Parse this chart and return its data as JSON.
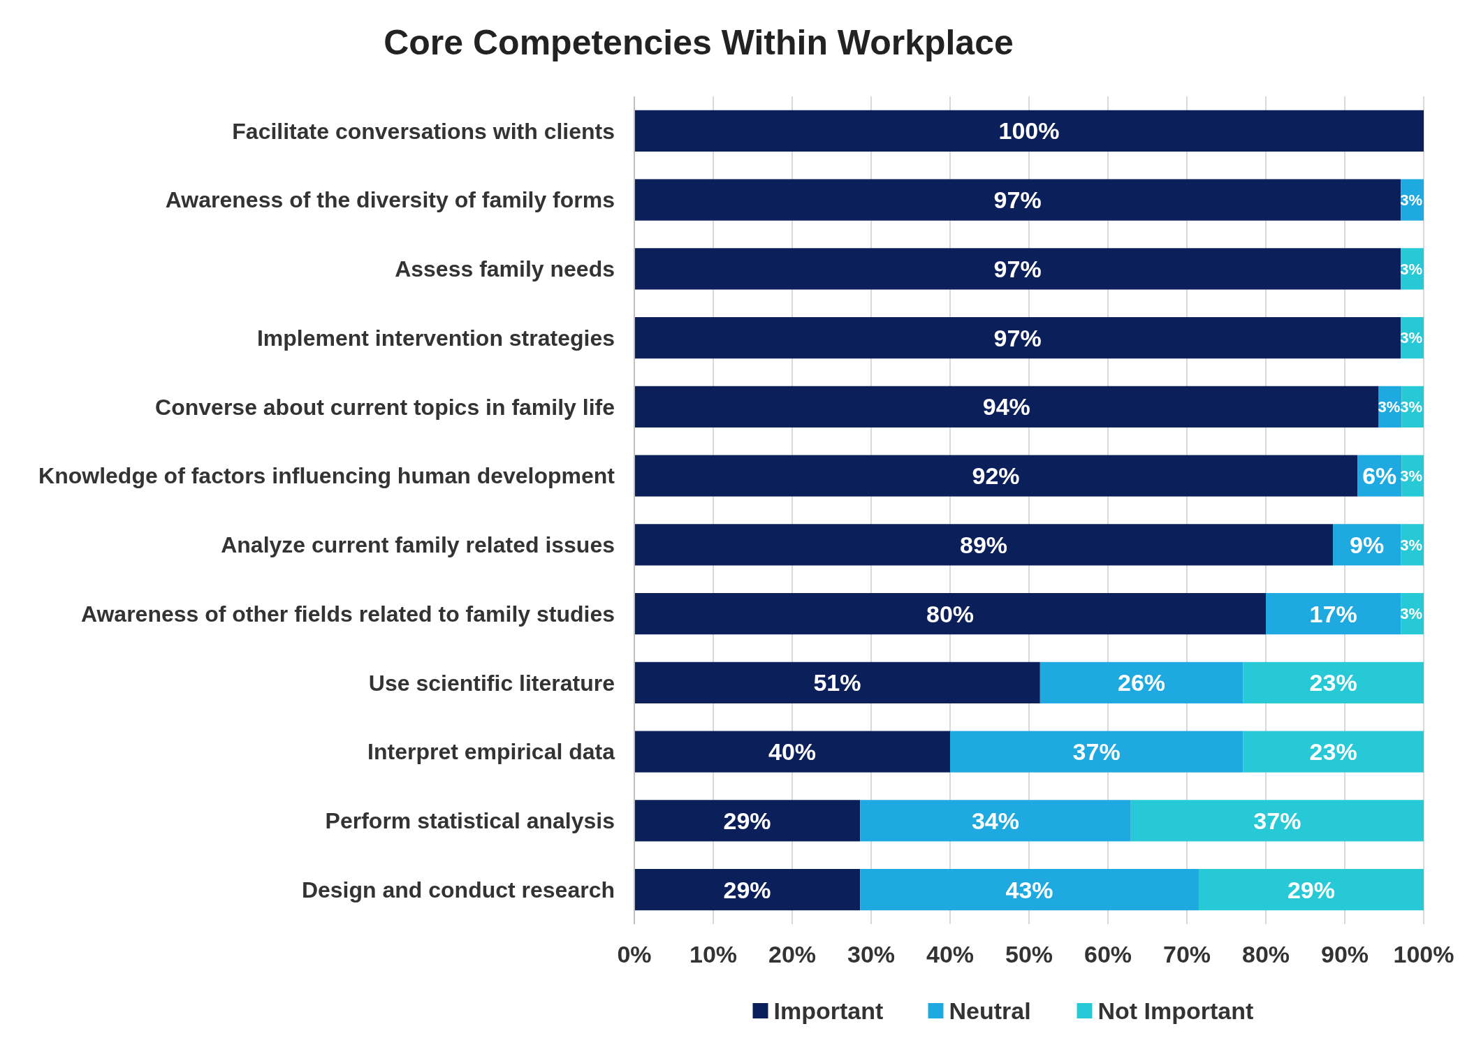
{
  "chart_data": {
    "type": "bar",
    "title": "Core Competencies Within Workplace",
    "orientation": "horizontal",
    "stacked": true,
    "categories": [
      "Facilitate conversations with clients",
      "Awareness of the diversity of family forms",
      "Assess family needs",
      "Implement intervention strategies",
      "Converse about current topics in family life",
      "Knowledge of factors influencing human development",
      "Analyze current family related issues",
      "Awareness of other fields related to family studies",
      "Use scientific literature",
      "Interpret empirical data",
      "Perform statistical analysis",
      "Design and conduct research"
    ],
    "series": [
      {
        "name": "Important",
        "color": "#0b1f5b",
        "values": [
          100,
          97.1,
          97.1,
          97.1,
          94.3,
          91.6,
          88.5,
          80.0,
          51.4,
          40.0,
          28.6,
          28.6
        ],
        "value_labels": [
          "100%",
          "97%",
          "97%",
          "97%",
          "94%",
          "92%",
          "89%",
          "80%",
          "51%",
          "40%",
          "29%",
          "29%"
        ]
      },
      {
        "name": "Neutral",
        "color": "#1ea9e1",
        "values": [
          null,
          2.9,
          null,
          null,
          2.9,
          5.6,
          8.6,
          17.1,
          25.7,
          37.1,
          34.3,
          42.9
        ],
        "value_labels": [
          null,
          "3%",
          null,
          null,
          "3%",
          "6%",
          "9%",
          "17%",
          "26%",
          "37%",
          "34%",
          "43%"
        ]
      },
      {
        "name": "Not Important",
        "color": "#26c9d5",
        "values": [
          null,
          null,
          2.9,
          2.9,
          2.8,
          2.8,
          2.9,
          2.9,
          22.9,
          22.9,
          37.1,
          28.5
        ],
        "value_labels": [
          null,
          null,
          "3%",
          "3%",
          "3%",
          "3%",
          "3%",
          "3%",
          "23%",
          "23%",
          "37%",
          "29%"
        ]
      }
    ],
    "xlim": [
      0,
      100
    ],
    "xticks": [
      {
        "value": 0,
        "label": "0%"
      },
      {
        "value": 10,
        "label": "10%"
      },
      {
        "value": 20,
        "label": "20%"
      },
      {
        "value": 30,
        "label": "30%"
      },
      {
        "value": 40,
        "label": "40%"
      },
      {
        "value": 50,
        "label": "50%"
      },
      {
        "value": 60,
        "label": "60%"
      },
      {
        "value": 70,
        "label": "70%"
      },
      {
        "value": 80,
        "label": "80%"
      },
      {
        "value": 90,
        "label": "90%"
      },
      {
        "value": 100,
        "label": "100%"
      }
    ],
    "grid": "x",
    "legend": "bottom"
  }
}
